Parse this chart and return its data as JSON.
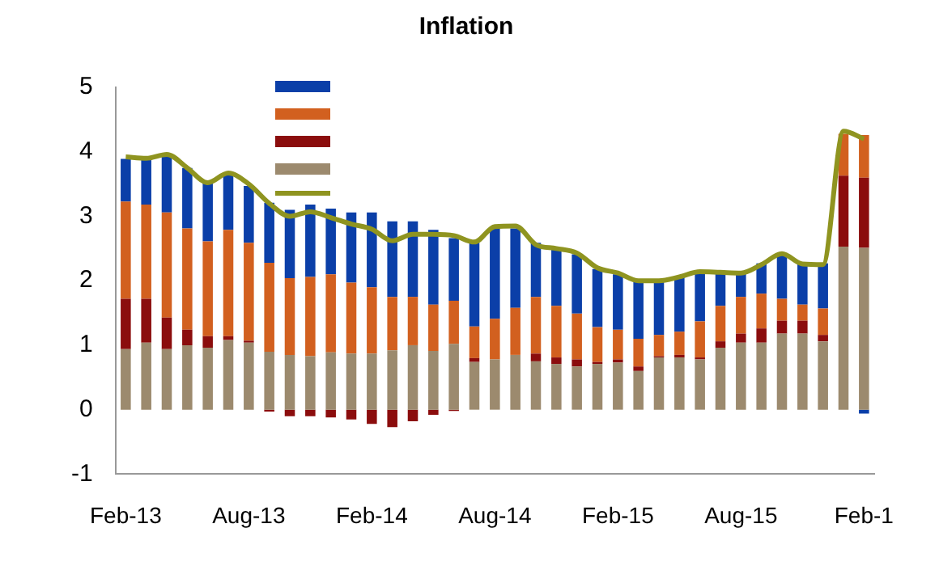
{
  "chart_data": {
    "type": "bar",
    "title": "Inflation",
    "stacked": true,
    "ylim": [
      -1,
      5
    ],
    "yticks": [
      -1,
      0,
      1,
      2,
      3,
      4,
      5
    ],
    "grid": false,
    "categories": [
      "Feb-13",
      null,
      null,
      null,
      null,
      null,
      "Aug-13",
      null,
      null,
      null,
      null,
      null,
      "Feb-14",
      null,
      null,
      null,
      null,
      null,
      "Aug-14",
      null,
      null,
      null,
      null,
      null,
      "Feb-15",
      null,
      null,
      null,
      null,
      null,
      "Aug-15",
      null,
      null,
      null,
      null,
      null,
      "Feb-1"
    ],
    "series": [
      {
        "color": "#9c8a6e",
        "values": [
          0.94,
          1.04,
          0.94,
          1.0,
          0.96,
          1.08,
          1.04,
          0.9,
          0.85,
          0.83,
          0.89,
          0.87,
          0.87,
          0.92,
          1.0,
          0.91,
          1.02,
          0.74,
          0.78,
          0.85,
          0.75,
          0.71,
          0.67,
          0.71,
          0.73,
          0.6,
          0.81,
          0.81,
          0.78,
          0.96,
          1.04,
          1.04,
          1.18,
          1.18,
          1.06,
          2.53,
          2.51
        ]
      },
      {
        "color": "#8b0d0d",
        "values": [
          0.78,
          0.68,
          0.49,
          0.24,
          0.18,
          0.06,
          0.03,
          -0.03,
          -0.1,
          -0.1,
          -0.12,
          -0.15,
          -0.22,
          -0.27,
          -0.18,
          -0.08,
          -0.02,
          0.06,
          0,
          0,
          0.12,
          0.1,
          0.11,
          0.03,
          0.05,
          0.07,
          0.02,
          0.04,
          0.03,
          0.1,
          0.14,
          0.22,
          0.2,
          0.2,
          0.1,
          1.1,
          1.09
        ]
      },
      {
        "color": "#d2601f",
        "values": [
          1.51,
          1.46,
          1.63,
          1.57,
          1.47,
          1.65,
          1.52,
          1.38,
          1.19,
          1.23,
          1.21,
          1.1,
          1.03,
          0.83,
          0.75,
          0.72,
          0.67,
          0.49,
          0.63,
          0.73,
          0.88,
          0.8,
          0.71,
          0.54,
          0.46,
          0.43,
          0.33,
          0.36,
          0.56,
          0.55,
          0.57,
          0.54,
          0.34,
          0.25,
          0.41,
          0.65,
          0.66
        ]
      },
      {
        "color": "#0b3fa8",
        "values": [
          0.66,
          0.71,
          0.88,
          0.94,
          0.9,
          0.88,
          0.88,
          0.93,
          1.06,
          1.12,
          1.02,
          1.09,
          1.16,
          1.17,
          1.17,
          1.16,
          0.97,
          1.3,
          1.41,
          1.23,
          0.84,
          0.88,
          0.92,
          0.9,
          0.86,
          0.91,
          0.85,
          0.85,
          0.77,
          0.51,
          0.37,
          0.47,
          0.69,
          0.64,
          0.7,
          0,
          -0.06
        ]
      },
      {
        "type": "line",
        "color": "#8f9420",
        "values": [
          3.92,
          3.9,
          3.96,
          3.75,
          3.52,
          3.67,
          3.5,
          3.2,
          3.0,
          3.07,
          2.98,
          2.88,
          2.8,
          2.62,
          2.72,
          2.72,
          2.7,
          2.6,
          2.84,
          2.85,
          2.56,
          2.5,
          2.43,
          2.2,
          2.12,
          2.0,
          2.0,
          2.06,
          2.14,
          2.13,
          2.12,
          2.25,
          2.42,
          2.26,
          2.25,
          4.32,
          4.2
        ]
      }
    ]
  }
}
